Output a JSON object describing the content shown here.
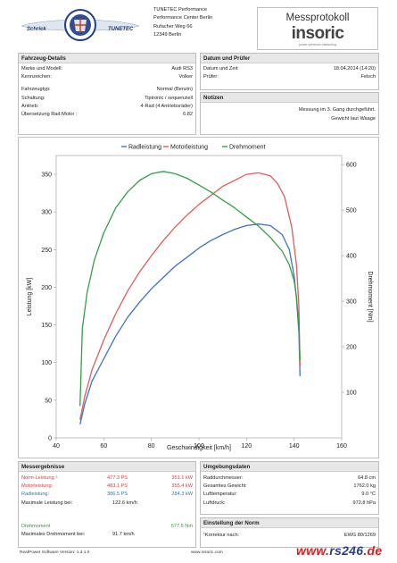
{
  "header": {
    "logo_text_left": "Schrick",
    "logo_text_right": "TUNETEC",
    "address": [
      "TUNETEC Performance",
      "Performance Center Berlin",
      "Rufacher Weg 66",
      "12349 Berlin"
    ],
    "protocol_title": "Messprotokoll",
    "brand": "insoric",
    "brand_tagline": "power precision measuring"
  },
  "vehicle": {
    "title": "Fahrzeug-Details",
    "rows": [
      {
        "label": "Marke und Modell:",
        "value": "Audi RS3"
      },
      {
        "label": "Kennzeichen:",
        "value": "Volker"
      },
      {
        "label": "Fahrzeugtyp:",
        "value": "Normal (Benzin)"
      },
      {
        "label": "Schaltung:",
        "value": "Tiptronic / sequenziell"
      },
      {
        "label": "Antrieb:",
        "value": "4-Rad (4 Antriebsräder)"
      },
      {
        "label": "Übersetzung Rad:Motor :",
        "value": "6.82"
      }
    ]
  },
  "date": {
    "title": "Datum und Prüfer",
    "rows": [
      {
        "label": "Datum und Zeit:",
        "value": "18.04.2014 (14:20)"
      },
      {
        "label": "Prüfer:",
        "value": "Felsch"
      }
    ]
  },
  "notes": {
    "title": "Notizen",
    "lines": [
      "Messung im 3. Gang durchgeführt.",
      "Gewicht laut Waage"
    ]
  },
  "chart_data": {
    "type": "line",
    "legend": [
      "Radleistung",
      "Motorleistung",
      "Drehmoment"
    ],
    "legend_position": "top",
    "xlabel": "Geschwindigkeit [km/h]",
    "ylabel": "Leistung [kW]",
    "y2label": "Drehmoment [Nm]",
    "xlim": [
      40,
      160
    ],
    "ylim": [
      0,
      375
    ],
    "y2lim": [
      0,
      620
    ],
    "x_ticks": [
      40,
      60,
      80,
      100,
      120,
      140,
      160
    ],
    "y_ticks": [
      0,
      50,
      100,
      150,
      200,
      250,
      300,
      350
    ],
    "y2_ticks": [
      100,
      200,
      300,
      400,
      500,
      600
    ],
    "grid": false,
    "colors": {
      "Radleistung": "#3b73c8",
      "Motorleistung": "#e15b5b",
      "Drehmoment": "#33a043"
    },
    "series": [
      {
        "name": "Radleistung",
        "axis": "left",
        "x": [
          50,
          52,
          55,
          60,
          65,
          70,
          75,
          80,
          85,
          90,
          95,
          100,
          105,
          110,
          115,
          120,
          125,
          130,
          135,
          138,
          140,
          141,
          142,
          142.5
        ],
        "y": [
          18,
          45,
          75,
          105,
          135,
          160,
          180,
          198,
          213,
          228,
          240,
          252,
          262,
          270,
          277,
          282,
          284,
          282,
          270,
          250,
          215,
          185,
          140,
          82
        ]
      },
      {
        "name": "Motorleistung",
        "axis": "left",
        "x": [
          50,
          52,
          55,
          60,
          65,
          70,
          75,
          80,
          85,
          90,
          95,
          100,
          105,
          110,
          115,
          120,
          125,
          130,
          133,
          136,
          139,
          141,
          142,
          142.5
        ],
        "y": [
          24,
          55,
          90,
          130,
          165,
          195,
          220,
          242,
          262,
          280,
          296,
          310,
          322,
          334,
          342,
          350,
          352,
          348,
          338,
          320,
          280,
          230,
          175,
          95
        ]
      },
      {
        "name": "Drehmoment",
        "axis": "right",
        "x": [
          50,
          51,
          53,
          56,
          60,
          65,
          70,
          75,
          80,
          85,
          90,
          95,
          100,
          105,
          110,
          115,
          120,
          125,
          130,
          135,
          138,
          140,
          141,
          142,
          142.5
        ],
        "y": [
          70,
          240,
          320,
          390,
          450,
          505,
          540,
          565,
          580,
          585,
          580,
          570,
          555,
          540,
          522,
          505,
          485,
          465,
          440,
          410,
          380,
          345,
          310,
          250,
          170
        ]
      }
    ]
  },
  "results": {
    "title": "Messergebnisse",
    "rows": [
      {
        "label": "Norm-Leistung ¹:",
        "ps": "477.3 PS",
        "kw": "351.1 kW",
        "color": "red"
      },
      {
        "label": "Motorleistung:",
        "ps": "483.1 PS",
        "kw": "355.4 kW",
        "color": "red"
      },
      {
        "label": "Radleistung:",
        "ps": "386.5 PS",
        "kw": "284.3 kW",
        "color": "blue"
      }
    ],
    "max_power_label": "Maximale Leistung bei:",
    "max_power_value": "122.6 km/h",
    "torque_label": "Drehmoment",
    "torque_value": "577.5 Nm",
    "max_torque_label": "Maximales Drehmoment bei:",
    "max_torque_value": "91.7 km/h"
  },
  "environment": {
    "title": "Umgebungsdaten",
    "rows": [
      {
        "label": "Raddurchmesser:",
        "value": "64.8 cm"
      },
      {
        "label": "Gesamtes Gewicht:",
        "value": "1762.0 kg"
      },
      {
        "label": "Lufttemperatur:",
        "value": "9.0 °C"
      },
      {
        "label": "Luftdruck:",
        "value": "972.8 hPa"
      }
    ]
  },
  "norm": {
    "title": "Einstellung der Norm",
    "label": "¹Korrektur nach:",
    "value": "EWG 80/1269"
  },
  "footer": {
    "version": "RealPower Software Version: 1.3.1.0",
    "url": "www.insoric.com",
    "watermark_a": "www.",
    "watermark_b": "rs246",
    "watermark_c": ".de"
  }
}
